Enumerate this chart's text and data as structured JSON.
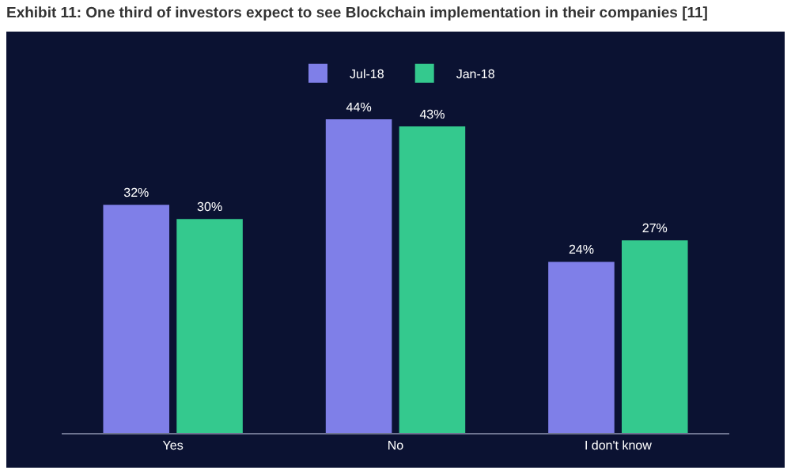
{
  "chart_data": {
    "type": "bar",
    "title": "Exhibit 11: One third of investors expect to see Blockchain implementation in their companies [11]",
    "categories": [
      "Yes",
      "No",
      "I don't know"
    ],
    "series": [
      {
        "name": "Jul-18",
        "color": "#7f7fe8",
        "values": [
          32,
          44,
          24
        ],
        "value_labels": [
          "32%",
          "44%",
          "24%"
        ]
      },
      {
        "name": "Jan-18",
        "color": "#34c98e",
        "values": [
          30,
          43,
          27
        ],
        "value_labels": [
          "30%",
          "43%",
          "27%"
        ]
      }
    ],
    "legend": "top"
  }
}
